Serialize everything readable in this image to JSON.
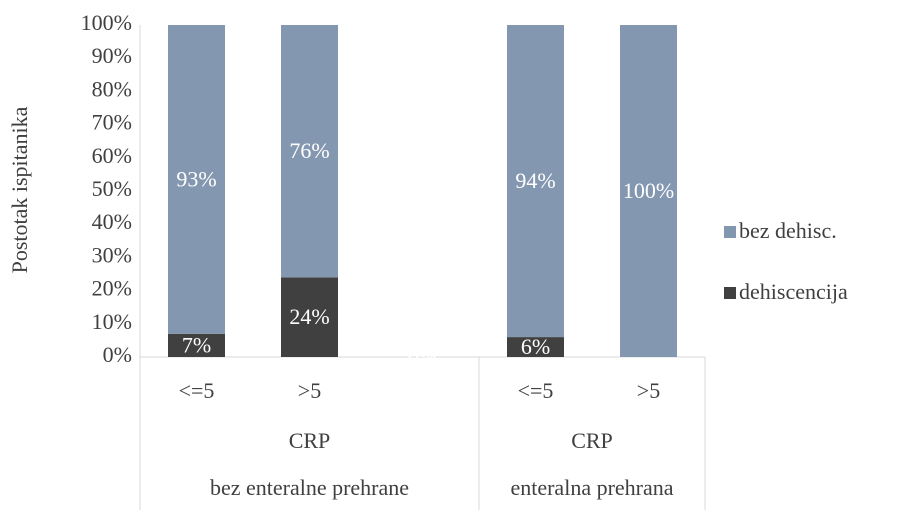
{
  "chart_data": {
    "type": "stacked_bar",
    "y_label": "Postotak ispitanika",
    "groups": [
      {
        "name": "bez enteralne prehrane",
        "sublabel": "CRP",
        "categories": [
          "<=5",
          ">5",
          null
        ]
      },
      {
        "name": "enteralna prehrana",
        "sublabel": "CRP",
        "categories": [
          "<=5",
          ">5"
        ]
      }
    ],
    "series": [
      {
        "name": "dehiscencija",
        "color": "#404040",
        "values": [
          7,
          24,
          0,
          6,
          0
        ],
        "value_labels": [
          "7%",
          "24%",
          "0%",
          "6%",
          null
        ]
      },
      {
        "name": "bez dehisc.",
        "color": "#8497b0",
        "values": [
          93,
          76,
          null,
          94,
          100
        ],
        "value_labels": [
          "93%",
          "76%",
          null,
          "94%",
          "100%"
        ]
      }
    ],
    "ylim": [
      0,
      100
    ],
    "yticks": [
      {
        "value": 0,
        "label": "0%"
      },
      {
        "value": 10,
        "label": "10%"
      },
      {
        "value": 20,
        "label": "20%"
      },
      {
        "value": 30,
        "label": "30%"
      },
      {
        "value": 40,
        "label": "40%"
      },
      {
        "value": 50,
        "label": "50%"
      },
      {
        "value": 60,
        "label": "60%"
      },
      {
        "value": 70,
        "label": "70%"
      },
      {
        "value": 80,
        "label": "80%"
      },
      {
        "value": 90,
        "label": "90%"
      },
      {
        "value": 100,
        "label": "100%"
      }
    ],
    "legend": "right"
  }
}
